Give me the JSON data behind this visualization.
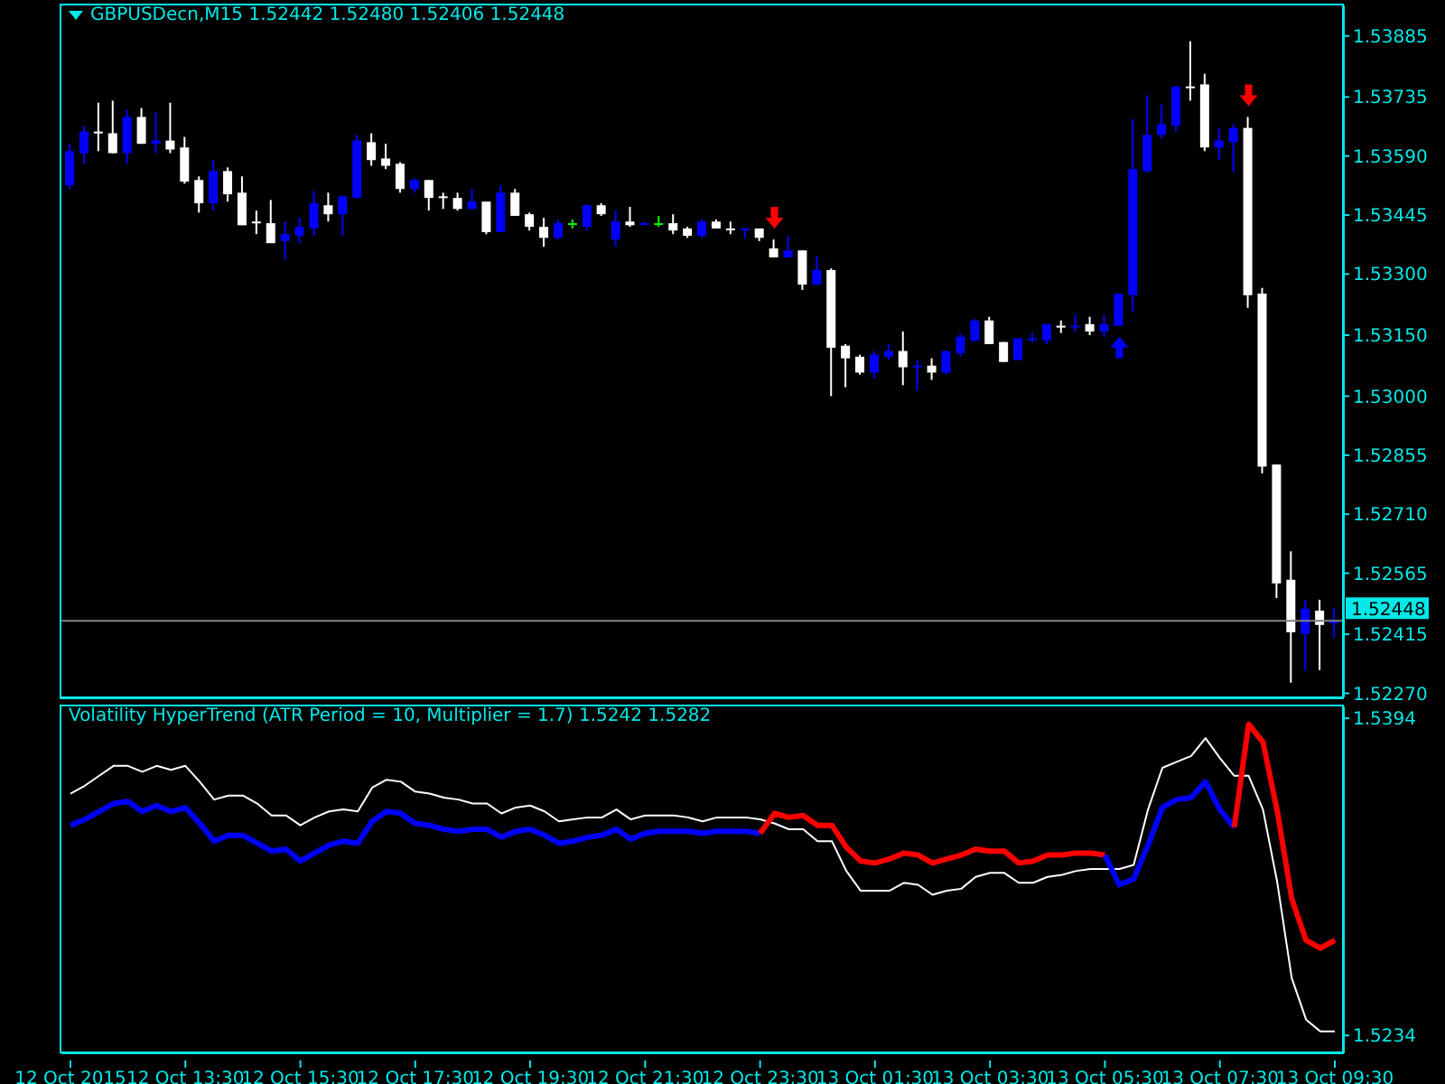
{
  "chart_data": [
    {
      "type": "candlestick",
      "title": "GBPUSDecn,M15  1.52442 1.52480 1.52406 1.52448",
      "tick_labels": "y",
      "categories": [
        null,
        null,
        null,
        null,
        null,
        null,
        null,
        null,
        null,
        null,
        null,
        null,
        null,
        null,
        null,
        null,
        null,
        null,
        null,
        null,
        null,
        null,
        null,
        null,
        null,
        null,
        null,
        null,
        null,
        null,
        null,
        null,
        null,
        null,
        null,
        null,
        null,
        null,
        null,
        null,
        null,
        null,
        null,
        null,
        null,
        null,
        null,
        null,
        null,
        null,
        null,
        null,
        null,
        null,
        null,
        null,
        null,
        null,
        null,
        null,
        null,
        null,
        null,
        null,
        null,
        null,
        null,
        null,
        null,
        null,
        null,
        null,
        null,
        null,
        null,
        null,
        null,
        null,
        null,
        null,
        null,
        null,
        null,
        null,
        null,
        null,
        null,
        null,
        null
      ],
      "ohlc": [
        [
          1.53518,
          1.5362,
          1.53509,
          1.53602
        ],
        [
          1.53597,
          1.53664,
          1.53571,
          1.5365
        ],
        [
          1.5365,
          1.53721,
          1.53602,
          1.5365
        ],
        [
          1.53646,
          1.53726,
          1.53597,
          1.53597
        ],
        [
          1.53597,
          1.53704,
          1.53571,
          1.53686
        ],
        [
          1.53686,
          1.53708,
          1.5362,
          1.5362
        ],
        [
          1.5362,
          1.53699,
          1.53597,
          1.53628
        ],
        [
          1.53628,
          1.53721,
          1.53597,
          1.53606
        ],
        [
          1.53611,
          1.53637,
          1.53522,
          1.53527
        ],
        [
          1.53531,
          1.5354,
          1.53451,
          1.53474
        ],
        [
          1.53474,
          1.5358,
          1.53456,
          1.53553
        ],
        [
          1.53553,
          1.53562,
          1.53478,
          1.53496
        ],
        [
          1.535,
          1.5354,
          1.5342,
          1.5342
        ],
        [
          1.53429,
          1.53456,
          1.53398,
          1.53429
        ],
        [
          1.53425,
          1.53482,
          1.53376,
          1.53376
        ],
        [
          1.53381,
          1.53429,
          1.53336,
          1.53398
        ],
        [
          1.53394,
          1.53438,
          1.53376,
          1.53416
        ],
        [
          1.53412,
          1.53504,
          1.53394,
          1.53474
        ],
        [
          1.53469,
          1.535,
          1.53429,
          1.53447
        ],
        [
          1.53447,
          1.53491,
          1.53394,
          1.53491
        ],
        [
          1.53487,
          1.53642,
          1.53487,
          1.53628
        ],
        [
          1.53624,
          1.53646,
          1.53566,
          1.5358
        ],
        [
          1.53584,
          1.5362,
          1.53558,
          1.53566
        ],
        [
          1.53571,
          1.53575,
          1.535,
          1.53509
        ],
        [
          1.53509,
          1.53535,
          1.535,
          1.53531
        ],
        [
          1.53531,
          1.53531,
          1.53456,
          1.53487
        ],
        [
          1.53491,
          1.535,
          1.5346,
          1.53491
        ],
        [
          1.53487,
          1.535,
          1.53456,
          1.5346
        ],
        [
          1.5346,
          1.53509,
          1.5346,
          1.53478
        ],
        [
          1.53478,
          1.53478,
          1.53398,
          1.53403
        ],
        [
          1.53403,
          1.53518,
          1.53403,
          1.535
        ],
        [
          1.535,
          1.53509,
          1.53443,
          1.53443
        ],
        [
          1.53447,
          1.53451,
          1.53407,
          1.53416
        ],
        [
          1.53416,
          1.53438,
          1.53367,
          1.53389
        ],
        [
          1.53389,
          1.53434,
          1.53385,
          1.53425
        ],
        [
          1.53425,
          1.53434,
          1.53412,
          1.53425
        ],
        [
          1.53416,
          1.53469,
          1.53407,
          1.53469
        ],
        [
          1.53469,
          1.53474,
          1.53443,
          1.53447
        ],
        [
          1.53385,
          1.53456,
          1.53367,
          1.53429
        ],
        [
          1.53429,
          1.53465,
          1.53416,
          1.5342
        ],
        [
          1.53425,
          1.53429,
          1.5342,
          1.53425
        ],
        [
          1.53425,
          1.53443,
          1.53416,
          1.53425
        ],
        [
          1.53425,
          1.53447,
          1.53398,
          1.53407
        ],
        [
          1.53412,
          1.53416,
          1.53389,
          1.53394
        ],
        [
          1.53394,
          1.53434,
          1.53389,
          1.53429
        ],
        [
          1.53429,
          1.53434,
          1.53412,
          1.53412
        ],
        [
          1.53412,
          1.53429,
          1.53398,
          1.53412
        ],
        [
          1.53412,
          1.53412,
          1.53389,
          1.53412
        ],
        [
          1.53412,
          1.53412,
          1.53381,
          1.53389
        ],
        [
          1.53363,
          1.53385,
          1.53341,
          1.53341
        ],
        [
          1.53341,
          1.53394,
          1.53341,
          1.53358
        ],
        [
          1.53358,
          1.53358,
          1.53261,
          1.53274
        ],
        [
          1.53274,
          1.53345,
          1.53274,
          1.5331
        ],
        [
          1.5331,
          1.53314,
          1.53,
          1.53119
        ],
        [
          1.53124,
          1.53128,
          1.53022,
          1.53093
        ],
        [
          1.53097,
          1.53102,
          1.53053,
          1.53058
        ],
        [
          1.53058,
          1.53111,
          1.53044,
          1.53102
        ],
        [
          1.53097,
          1.53128,
          1.53089,
          1.53111
        ],
        [
          1.53111,
          1.53159,
          1.53027,
          1.53071
        ],
        [
          1.53075,
          1.53089,
          1.53013,
          1.53075
        ],
        [
          1.53075,
          1.53093,
          1.5304,
          1.53058
        ],
        [
          1.53058,
          1.53111,
          1.53053,
          1.53111
        ],
        [
          1.53106,
          1.53155,
          1.53097,
          1.53146
        ],
        [
          1.53137,
          1.5319,
          1.53133,
          1.53186
        ],
        [
          1.53186,
          1.53195,
          1.53128,
          1.53128
        ],
        [
          1.53133,
          1.53133,
          1.53084,
          1.53084
        ],
        [
          1.53089,
          1.53142,
          1.53089,
          1.53142
        ],
        [
          1.53142,
          1.53155,
          1.53133,
          1.53142
        ],
        [
          1.53137,
          1.53177,
          1.53128,
          1.53177
        ],
        [
          1.53173,
          1.53186,
          1.53155,
          1.53173
        ],
        [
          1.53173,
          1.53199,
          1.53159,
          1.53173
        ],
        [
          1.53177,
          1.53195,
          1.5315,
          1.53159
        ],
        [
          1.53159,
          1.53199,
          1.53146,
          1.53177
        ],
        [
          1.53173,
          1.53252,
          1.53173,
          1.53252
        ],
        [
          1.53248,
          1.53681,
          1.53208,
          1.53558
        ],
        [
          1.53553,
          1.53739,
          1.53549,
          1.53642
        ],
        [
          1.53642,
          1.53717,
          1.53633,
          1.53668
        ],
        [
          1.53664,
          1.53761,
          1.5365,
          1.53761
        ],
        [
          1.53761,
          1.53872,
          1.53726,
          1.53761
        ],
        [
          1.53766,
          1.53792,
          1.53602,
          1.53611
        ],
        [
          1.53611,
          1.53659,
          1.5358,
          1.53628
        ],
        [
          1.53624,
          1.53668,
          1.53549,
          1.53659
        ],
        [
          1.53659,
          1.53686,
          1.53217,
          1.53248
        ],
        [
          1.53252,
          1.53266,
          1.5281,
          1.52827
        ],
        [
          1.52832,
          1.52832,
          1.52504,
          1.5254
        ],
        [
          1.52549,
          1.52619,
          1.52296,
          1.5242
        ],
        [
          1.52416,
          1.525,
          1.52327,
          1.52478
        ],
        [
          1.52473,
          1.525,
          1.52327,
          1.52438
        ],
        [
          1.52442,
          1.5248,
          1.52406,
          1.52448
        ]
      ],
      "colors": [
        "#0000ff",
        "#0000ff",
        "#ffffff",
        "#ffffff",
        "#0000ff",
        "#ffffff",
        "#0000ff",
        "#ffffff",
        "#ffffff",
        "#ffffff",
        "#0000ff",
        "#ffffff",
        "#ffffff",
        "#ffffff",
        "#ffffff",
        "#0000ff",
        "#0000ff",
        "#0000ff",
        "#ffffff",
        "#0000ff",
        "#0000ff",
        "#ffffff",
        "#ffffff",
        "#ffffff",
        "#0000ff",
        "#ffffff",
        "#ffffff",
        "#ffffff",
        "#0000ff",
        "#ffffff",
        "#0000ff",
        "#ffffff",
        "#ffffff",
        "#ffffff",
        "#0000ff",
        "#00ff00",
        "#0000ff",
        "#ffffff",
        "#0000ff",
        "#ffffff",
        "#0000ff",
        "#00ff00",
        "#ffffff",
        "#ffffff",
        "#0000ff",
        "#ffffff",
        "#ffffff",
        "#0000ff",
        "#ffffff",
        "#ffffff",
        "#0000ff",
        "#ffffff",
        "#0000ff",
        "#ffffff",
        "#ffffff",
        "#ffffff",
        "#0000ff",
        "#0000ff",
        "#ffffff",
        "#0000ff",
        "#ffffff",
        "#0000ff",
        "#0000ff",
        "#0000ff",
        "#ffffff",
        "#ffffff",
        "#0000ff",
        "#0000ff",
        "#0000ff",
        "#ffffff",
        "#0000ff",
        "#ffffff",
        "#0000ff",
        "#0000ff",
        "#0000ff",
        "#0000ff",
        "#0000ff",
        "#0000ff",
        "#ffffff",
        "#ffffff",
        "#0000ff",
        "#0000ff",
        "#ffffff",
        "#ffffff",
        "#ffffff",
        "#ffffff",
        "#0000ff",
        "#ffffff",
        "#0000ff"
      ],
      "ylim": [
        1.5226,
        1.5396
      ],
      "yticks": [
        1.53885,
        1.53735,
        {
          "value": 1.5359,
          "label": "1.53590"
        },
        1.53445,
        {
          "value": 1.533,
          "label": "1.53300"
        },
        {
          "value": 1.5315,
          "label": "1.53150"
        },
        {
          "value": 1.53,
          "label": "1.53000"
        },
        1.52855,
        {
          "value": 1.5271,
          "label": "1.52710"
        },
        1.52565,
        1.52415,
        {
          "value": 1.5227,
          "label": "1.52270"
        }
      ],
      "ref_lines": [
        {
          "axis": "y",
          "value": 1.52448,
          "label": "1.52448",
          "color": "#808080"
        }
      ]
    },
    {
      "type": "line",
      "title": "Volatility HyperTrend (ATR Period = 10, Multiplier = 1.7) 1.5242 1.5282",
      "categories": [
        "12 Oct 2015",
        null,
        null,
        null,
        null,
        null,
        null,
        null,
        "12 Oct 13:30",
        null,
        null,
        null,
        null,
        null,
        null,
        null,
        "12 Oct 15:30",
        null,
        null,
        null,
        null,
        null,
        null,
        null,
        "12 Oct 17:30",
        null,
        null,
        null,
        null,
        null,
        null,
        null,
        "12 Oct 19:30",
        null,
        null,
        null,
        null,
        null,
        null,
        null,
        "12 Oct 21:30",
        null,
        null,
        null,
        null,
        null,
        null,
        null,
        "12 Oct 23:30",
        null,
        null,
        null,
        null,
        null,
        null,
        null,
        "13 Oct 01:30",
        null,
        null,
        null,
        null,
        null,
        null,
        null,
        "13 Oct 03:30",
        null,
        null,
        null,
        null,
        null,
        null,
        null,
        "13 Oct 05:30",
        null,
        null,
        null,
        null,
        null,
        null,
        null,
        "13 Oct 07:30",
        null,
        null,
        null,
        null,
        null,
        null,
        null,
        "13 Oct 09:30"
      ],
      "ylim": [
        1.5225,
        1.54
      ],
      "yticks": [
        1.5394,
        1.5234
      ],
      "series": [
        {
          "color": "#ffffff",
          "values": [
            1.5356,
            1.536,
            1.5365,
            1.537,
            1.537,
            1.5367,
            1.537,
            1.5368,
            1.537,
            1.5362,
            1.5353,
            1.5355,
            1.5355,
            1.5351,
            1.5345,
            1.5345,
            1.534,
            1.5344,
            1.5347,
            1.5348,
            1.5347,
            1.5359,
            1.5363,
            1.5362,
            1.5357,
            1.5356,
            1.5354,
            1.5353,
            1.5351,
            1.5351,
            1.5346,
            1.5349,
            1.535,
            1.5347,
            1.5342,
            1.5343,
            1.5344,
            1.5344,
            1.5348,
            1.5343,
            1.5345,
            1.5345,
            1.5345,
            1.5344,
            1.5342,
            1.5344,
            1.5344,
            1.5344,
            1.5343,
            1.5341,
            1.5338,
            1.5338,
            1.5332,
            1.5332,
            1.5317,
            1.5307,
            1.5307,
            1.5307,
            1.5311,
            1.531,
            1.5305,
            1.5307,
            1.5308,
            1.5314,
            1.5316,
            1.5316,
            1.5311,
            1.5311,
            1.5314,
            1.5315,
            1.5317,
            1.5318,
            1.5318,
            1.5318,
            1.532,
            1.5348,
            1.5369,
            1.5372,
            1.5375,
            1.5384,
            1.5374,
            1.5365,
            1.5365,
            1.5348,
            1.5311,
            1.5263,
            1.5242,
            1.5236,
            1.5236
          ]
        },
        {
          "color": "#0000ff",
          "values": [
            1.534,
            1.5343,
            1.5347,
            1.5351,
            1.5352,
            1.5347,
            1.535,
            1.5347,
            1.5349,
            1.5341,
            1.5332,
            1.5335,
            1.5335,
            1.5331,
            1.5327,
            1.5328,
            1.5322,
            1.5326,
            1.533,
            1.5332,
            1.5331,
            1.5342,
            1.5347,
            1.5346,
            1.5341,
            1.534,
            1.5338,
            1.5337,
            1.5338,
            1.5338,
            1.5334,
            1.5337,
            1.5338,
            1.5335,
            1.5331,
            1.5332,
            1.5334,
            1.5335,
            1.5338,
            1.5333,
            1.5336,
            1.5337,
            1.5337,
            1.5337,
            1.5336,
            1.5337,
            1.5337,
            1.5337,
            1.5336,
            null,
            null,
            null,
            null,
            null,
            null,
            null,
            null,
            null,
            null,
            null,
            null,
            null,
            null,
            null,
            null,
            null,
            null,
            null,
            null,
            null,
            null,
            null,
            null,
            null,
            null,
            null,
            null,
            null,
            null,
            null,
            null,
            null,
            null,
            null,
            null,
            null,
            null,
            null,
            null
          ]
        },
        {
          "color": "#ff0000",
          "values": [
            null,
            null,
            null,
            null,
            null,
            null,
            null,
            null,
            null,
            null,
            null,
            null,
            null,
            null,
            null,
            null,
            null,
            null,
            null,
            null,
            null,
            null,
            null,
            null,
            null,
            null,
            null,
            null,
            null,
            null,
            null,
            null,
            null,
            null,
            null,
            null,
            null,
            null,
            null,
            null,
            null,
            null,
            null,
            null,
            null,
            null,
            null,
            null,
            1.5336,
            1.5346,
            1.5344,
            1.5345,
            1.534,
            1.534,
            1.5329,
            1.5322,
            1.5321,
            1.5323,
            1.5326,
            1.5325,
            1.5321,
            1.5323,
            1.5325,
            1.5328,
            1.5327,
            1.5327,
            1.5321,
            1.5322,
            1.5325,
            1.5325,
            1.5326,
            1.5326,
            1.5325,
            null,
            null,
            null,
            null,
            null,
            null,
            null,
            null,
            null,
            null,
            null,
            null,
            null,
            null,
            null,
            null
          ]
        },
        {
          "color": "#0000ff",
          "values": [
            null,
            null,
            null,
            null,
            null,
            null,
            null,
            null,
            null,
            null,
            null,
            null,
            null,
            null,
            null,
            null,
            null,
            null,
            null,
            null,
            null,
            null,
            null,
            null,
            null,
            null,
            null,
            null,
            null,
            null,
            null,
            null,
            null,
            null,
            null,
            null,
            null,
            null,
            null,
            null,
            null,
            null,
            null,
            null,
            null,
            null,
            null,
            null,
            null,
            null,
            null,
            null,
            null,
            null,
            null,
            null,
            null,
            null,
            null,
            null,
            null,
            null,
            null,
            null,
            null,
            null,
            null,
            null,
            null,
            null,
            null,
            null,
            1.5325,
            1.531,
            1.5313,
            1.533,
            1.5349,
            1.5353,
            1.5354,
            1.5362,
            1.5348,
            1.5339,
            null,
            null,
            null,
            null,
            null,
            null,
            null
          ]
        },
        {
          "color": "#ff0000",
          "values": [
            null,
            null,
            null,
            null,
            null,
            null,
            null,
            null,
            null,
            null,
            null,
            null,
            null,
            null,
            null,
            null,
            null,
            null,
            null,
            null,
            null,
            null,
            null,
            null,
            null,
            null,
            null,
            null,
            null,
            null,
            null,
            null,
            null,
            null,
            null,
            null,
            null,
            null,
            null,
            null,
            null,
            null,
            null,
            null,
            null,
            null,
            null,
            null,
            null,
            null,
            null,
            null,
            null,
            null,
            null,
            null,
            null,
            null,
            null,
            null,
            null,
            null,
            null,
            null,
            null,
            null,
            null,
            null,
            null,
            null,
            null,
            null,
            null,
            null,
            null,
            null,
            null,
            null,
            null,
            null,
            null,
            1.5339,
            1.5391,
            1.5382,
            1.5347,
            1.5303,
            1.5282,
            1.5278,
            1.5282
          ]
        }
      ]
    }
  ]
}
